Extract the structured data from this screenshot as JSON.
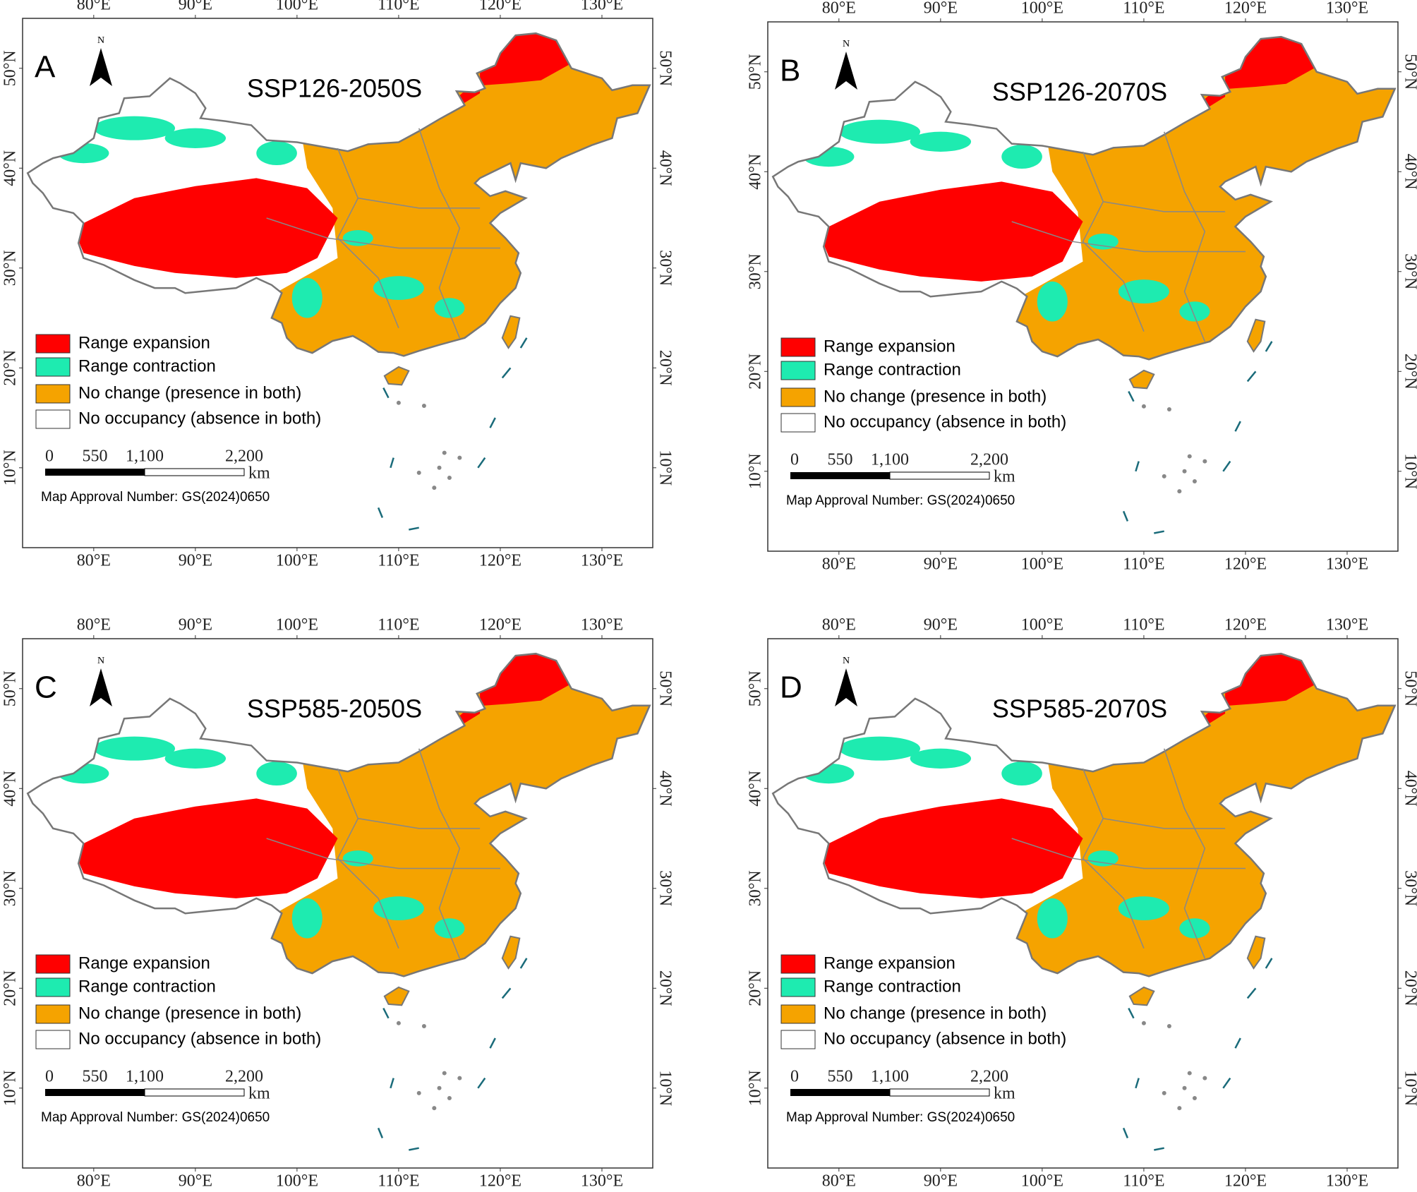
{
  "panels": [
    {
      "letter": "A",
      "title": "SSP126-2050S"
    },
    {
      "letter": "B",
      "title": "SSP126-2070S"
    },
    {
      "letter": "C",
      "title": "SSP585-2050S"
    },
    {
      "letter": "D",
      "title": "SSP585-2070S"
    }
  ],
  "lon_ticks": [
    {
      "value": 80,
      "label": "80°E"
    },
    {
      "value": 90,
      "label": "90°E"
    },
    {
      "value": 100,
      "label": "100°E"
    },
    {
      "value": 110,
      "label": "110°E"
    },
    {
      "value": 120,
      "label": "120°E"
    },
    {
      "value": 130,
      "label": "130°E"
    }
  ],
  "lat_ticks": [
    {
      "value": 50,
      "label": "50°N"
    },
    {
      "value": 40,
      "label": "40°N"
    },
    {
      "value": 30,
      "label": "30°N"
    },
    {
      "value": 20,
      "label": "20°N"
    },
    {
      "value": 10,
      "label": "10°N"
    }
  ],
  "north": "N",
  "legend": [
    {
      "label": "Range expansion",
      "color": "#ff0000"
    },
    {
      "label": "Range contraction",
      "color": "#1eebb0"
    },
    {
      "label": "No change (presence in both)",
      "color": "#f5a300"
    },
    {
      "label": "No occupancy (absence in both)",
      "color": "#ffffff"
    }
  ],
  "scale_bar": {
    "ticks": [
      0,
      550,
      {
        "value": 1100,
        "label": "1,100"
      },
      {
        "value": 2200,
        "label": "2,200"
      }
    ],
    "unit": "km"
  },
  "approval_note": "Map Approval Number: GS(2024)0650"
}
